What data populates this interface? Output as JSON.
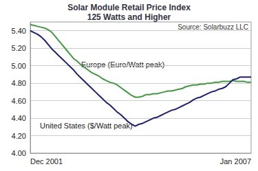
{
  "chart_data": {
    "type": "line",
    "title": "Solar Module Retail Price Index",
    "subtitle": "125 Watts and Higher",
    "annotations": [
      "Source: Solarbuzz LLC"
    ],
    "categories": [
      "Dec 2001",
      null,
      null,
      null,
      null,
      null,
      null,
      null,
      null,
      null,
      null,
      null,
      null,
      null,
      null,
      null,
      null,
      null,
      null,
      null,
      null,
      null,
      null,
      null,
      null,
      null,
      null,
      null,
      null,
      null,
      null,
      null,
      null,
      null,
      null,
      null,
      null,
      null,
      null,
      null,
      null,
      null,
      null,
      null,
      null,
      null,
      null,
      null,
      null,
      null,
      null,
      null,
      null,
      null,
      null,
      null,
      null,
      null,
      null,
      null,
      null,
      "Jan 2007"
    ],
    "series": [
      {
        "name": "Europe (Euro/Watt peak)",
        "color": "#3f9a3f",
        "marker": "none",
        "line_style": "solid",
        "values": [
          5.47,
          5.46,
          5.45,
          5.44,
          5.43,
          5.41,
          5.38,
          5.33,
          5.28,
          5.23,
          5.18,
          5.13,
          5.08,
          5.05,
          5.01,
          4.98,
          4.95,
          4.92,
          4.9,
          4.88,
          4.85,
          4.83,
          4.81,
          4.8,
          4.78,
          4.75,
          4.72,
          4.69,
          4.66,
          4.64,
          4.64,
          4.65,
          4.67,
          4.67,
          4.68,
          4.68,
          4.69,
          4.7,
          4.71,
          4.71,
          4.72,
          4.73,
          4.74,
          4.76,
          4.77,
          4.78,
          4.78,
          4.79,
          4.79,
          4.8,
          4.8,
          4.81,
          4.81,
          4.82,
          4.82,
          4.82,
          4.83,
          4.82,
          4.82,
          4.82,
          4.81,
          4.81
        ]
      },
      {
        "name": "United States ($/Watt peak)",
        "color": "#1c1f7a",
        "marker": "none",
        "line_style": "solid",
        "values": [
          5.4,
          5.38,
          5.36,
          5.33,
          5.29,
          5.24,
          5.19,
          5.15,
          5.11,
          5.07,
          5.03,
          4.99,
          4.95,
          4.9,
          4.86,
          4.82,
          4.78,
          4.74,
          4.7,
          4.66,
          4.62,
          4.58,
          4.55,
          4.51,
          4.47,
          4.44,
          4.4,
          4.36,
          4.33,
          4.31,
          4.33,
          4.34,
          4.36,
          4.38,
          4.4,
          4.41,
          4.43,
          4.45,
          4.47,
          4.49,
          4.5,
          4.52,
          4.54,
          4.56,
          4.58,
          4.61,
          4.63,
          4.64,
          4.66,
          4.68,
          4.7,
          4.71,
          4.73,
          4.74,
          4.76,
          4.8,
          4.84,
          4.85,
          4.87,
          4.87,
          4.87,
          4.87
        ]
      }
    ],
    "ylim": [
      4.0,
      5.5
    ],
    "yticks": [
      {
        "value": 4.0,
        "label": "4.00"
      },
      {
        "value": 4.2,
        "label": "4.20"
      },
      {
        "value": 4.4,
        "label": "4.40"
      },
      {
        "value": 4.6,
        "label": "4.60"
      },
      {
        "value": 4.8,
        "label": "4.80"
      },
      {
        "value": 5.0,
        "label": "5.00"
      },
      {
        "value": 5.2,
        "label": "5.20"
      },
      {
        "value": 5.4,
        "label": "5.40"
      }
    ],
    "grid": true
  }
}
